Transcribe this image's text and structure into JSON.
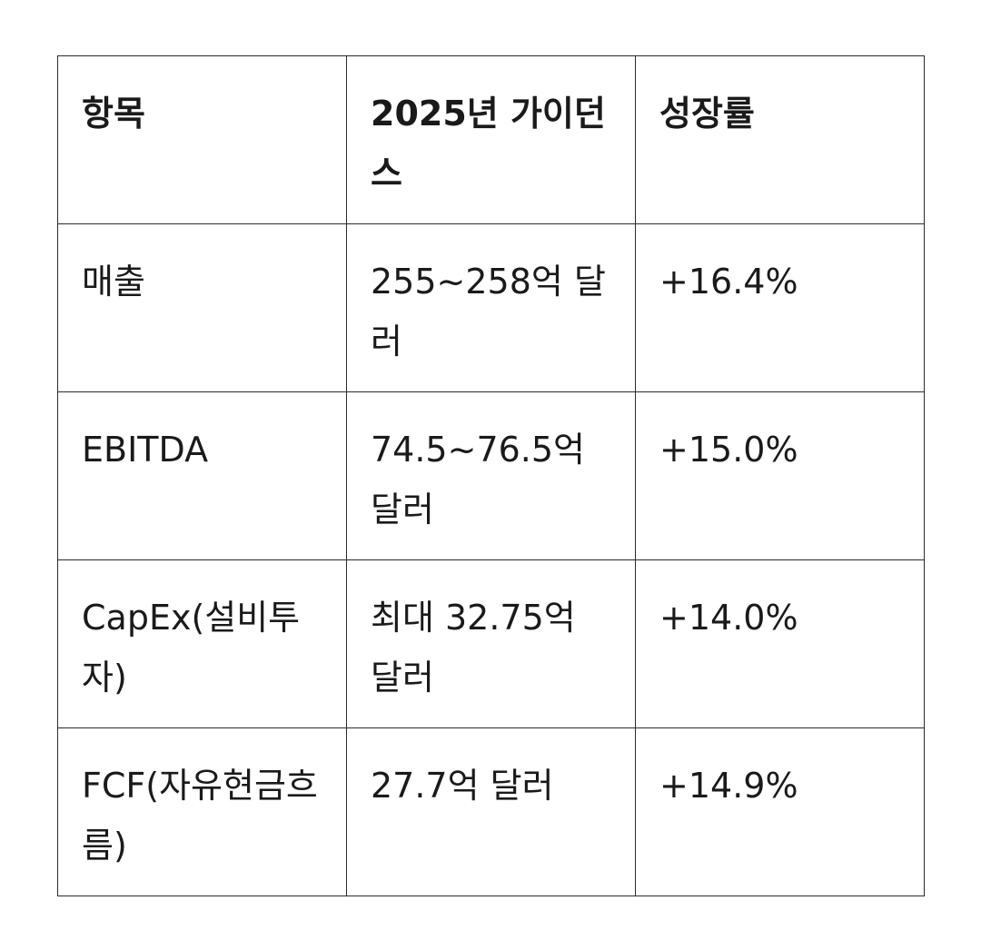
{
  "table": {
    "headers": [
      "항목",
      "2025년 가이던스",
      "성장률"
    ],
    "rows": [
      [
        "매출",
        "255~258억 달러",
        "+16.4%"
      ],
      [
        "EBITDA",
        "74.5~76.5억 달러",
        "+15.0%"
      ],
      [
        "CapEx(설비투자)",
        "최대 32.75억 달러",
        "+14.0%"
      ],
      [
        "FCF(자유현금흐름)",
        "27.7억 달러",
        "+14.9%"
      ]
    ]
  }
}
